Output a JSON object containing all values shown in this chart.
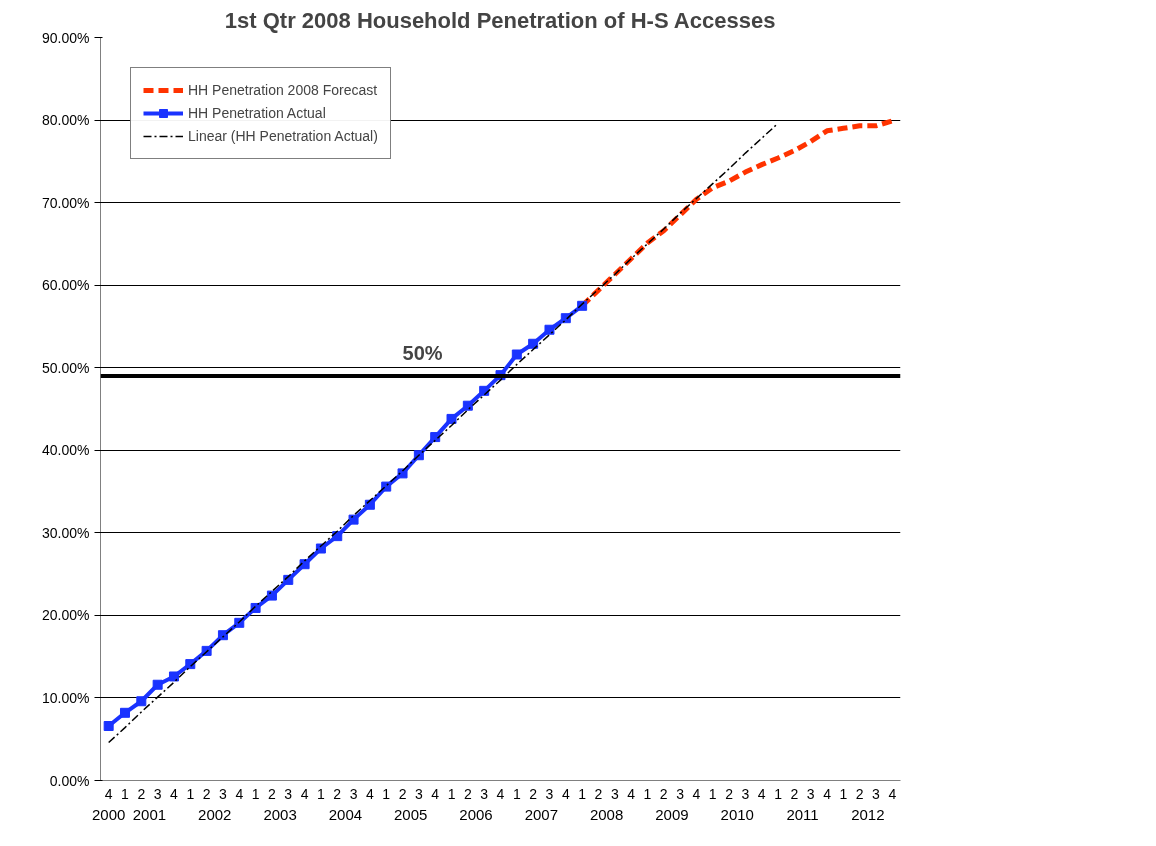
{
  "chart_data": {
    "type": "line",
    "title": "1st Qtr 2008 Household Penetration of H-S Accesses",
    "categories": [
      "4",
      "1",
      "2",
      "3",
      "4",
      "1",
      "2",
      "3",
      "4",
      "1",
      "2",
      "3",
      "4",
      "1",
      "2",
      "3",
      "4",
      "1",
      "2",
      "3",
      "4",
      "1",
      "2",
      "3",
      "4",
      "1",
      "2",
      "3",
      "4",
      "1",
      "2",
      "3",
      "4",
      "1",
      "2",
      "3",
      "4",
      "1",
      "2",
      "3",
      "4",
      "1",
      "2",
      "3",
      "4",
      "1",
      "2",
      "3",
      "4"
    ],
    "annotations": [
      "2000",
      "2001",
      "2002",
      "2003",
      "2004",
      "2005",
      "2006",
      "2007",
      "2008",
      "2009",
      "2010",
      "2011",
      "2012",
      "50%"
    ],
    "series": [
      {
        "name": "HH Penetration 2008 Forecast",
        "color": "#ff3300",
        "line_style": "dashed",
        "marker": "none",
        "values": [
          null,
          null,
          null,
          null,
          null,
          null,
          null,
          null,
          null,
          null,
          null,
          null,
          null,
          null,
          null,
          null,
          null,
          null,
          null,
          null,
          null,
          null,
          null,
          null,
          null,
          null,
          null,
          null,
          null,
          57.5,
          59.4,
          61.3,
          63.2,
          65.1,
          66.6,
          68.5,
          70.4,
          71.8,
          72.6,
          73.7,
          74.6,
          75.4,
          76.3,
          77.4,
          78.7,
          79.0,
          79.3,
          79.3,
          79.9
        ]
      },
      {
        "name": "HH Penetration Actual",
        "color": "#1a33ff",
        "line_style": "solid",
        "marker": "square",
        "values": [
          6.6,
          8.2,
          9.6,
          11.6,
          12.6,
          14.1,
          15.7,
          17.6,
          19.1,
          20.9,
          22.4,
          24.3,
          26.2,
          28.1,
          29.6,
          31.6,
          33.4,
          35.6,
          37.2,
          39.4,
          41.6,
          43.8,
          45.4,
          47.2,
          49.1,
          51.6,
          52.9,
          54.6,
          56.0,
          57.5,
          null,
          null,
          null,
          null,
          null,
          null,
          null,
          null,
          null,
          null,
          null,
          null,
          null,
          null,
          null,
          null,
          null,
          null,
          null
        ]
      },
      {
        "name": "Linear (HH Penetration Actual)",
        "color": "#000000",
        "line_style": "dashdot",
        "marker": "none",
        "values": [
          4.6,
          6.4,
          8.3,
          10.1,
          11.9,
          13.8,
          15.6,
          17.4,
          19.2,
          21.1,
          22.9,
          24.7,
          26.6,
          28.4,
          30.2,
          32.1,
          33.9,
          35.7,
          37.5,
          39.4,
          41.2,
          43.0,
          44.9,
          46.7,
          48.5,
          50.4,
          52.2,
          54.0,
          55.8,
          57.7,
          59.5,
          61.3,
          63.2,
          65.0,
          66.8,
          68.7,
          70.5,
          72.3,
          74.1,
          76.0,
          77.8,
          79.6,
          null,
          null,
          null,
          null,
          null,
          null,
          null
        ]
      }
    ],
    "ylim": [
      0,
      90
    ],
    "yticks": [
      {
        "value": 0,
        "label": "0.00%"
      },
      {
        "value": 10,
        "label": "10.00%"
      },
      {
        "value": 20,
        "label": "20.00%"
      },
      {
        "value": 30,
        "label": "30.00%"
      },
      {
        "value": 40,
        "label": "40.00%"
      },
      {
        "value": 50,
        "label": "50.00%"
      },
      {
        "value": 60,
        "label": "60.00%"
      },
      {
        "value": 70,
        "label": "70.00%"
      },
      {
        "value": 80,
        "label": "80.00%"
      },
      {
        "value": 90,
        "label": "90.00%"
      }
    ],
    "ref_lines": [
      {
        "axis": "y",
        "value": 49,
        "color": "#000000"
      }
    ],
    "grid": "y",
    "legend": "top left"
  }
}
